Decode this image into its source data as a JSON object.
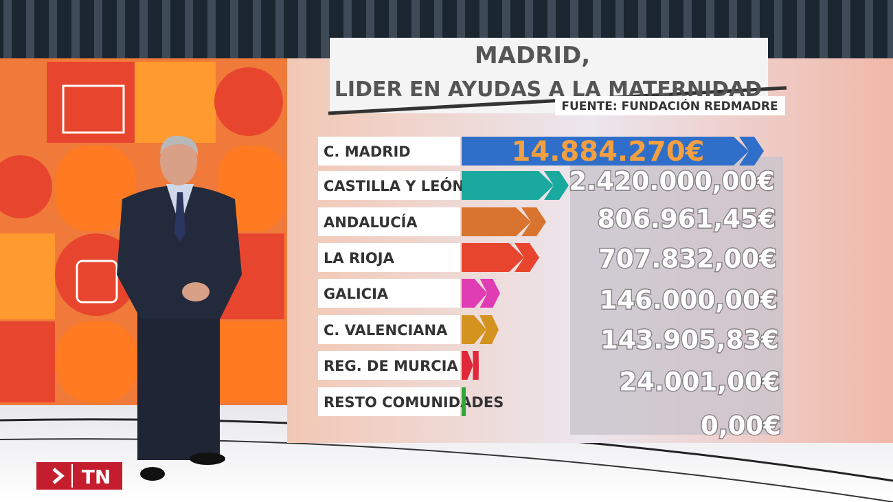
{
  "header": {
    "title_line1": "MADRID,",
    "title_line2": "LIDER EN AYUDAS A LA MATERNIDAD",
    "source": "FUENTE: FUNDACIÓN REDMADRE"
  },
  "rows": [
    {
      "label": "C. MADRID",
      "amount": "14.884.270€"
    },
    {
      "label": "CASTILLA Y LEÓN",
      "amount": "2.420.000,00€"
    },
    {
      "label": "ANDALUCÍA",
      "amount": "806.961,45€"
    },
    {
      "label": "LA RIOJA",
      "amount": "707.832,00€"
    },
    {
      "label": "GALICIA",
      "amount": "146.000,00€"
    },
    {
      "label": "C. VALENCIANA",
      "amount": "143.905,83€"
    },
    {
      "label": "REG. DE MURCIA",
      "amount": "24.001,00€"
    },
    {
      "label": "RESTO COMUNIDADES",
      "amount": "0,00€"
    }
  ],
  "logo": "TN"
}
